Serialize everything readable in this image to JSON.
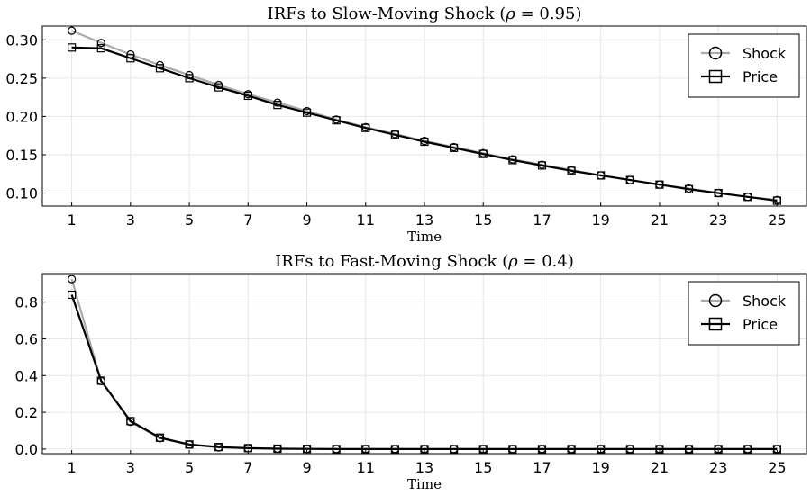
{
  "chart_data": [
    {
      "type": "line",
      "title": "IRFs to Slow-Moving Shock (ρ = 0.95)",
      "title_main": "IRFs to Slow-Moving Shock (",
      "title_sym": "ρ",
      "title_rest": " = 0.95)",
      "xlabel": "Time",
      "ylabel": "",
      "xlim": [
        0,
        26
      ],
      "ylim": [
        0.083,
        0.318
      ],
      "xticks": [
        1,
        3,
        5,
        7,
        9,
        11,
        13,
        15,
        17,
        19,
        21,
        23,
        25
      ],
      "yticks": [
        0.1,
        0.15,
        0.2,
        0.25,
        0.3
      ],
      "ytick_labels": [
        "0.10",
        "0.15",
        "0.20",
        "0.25",
        "0.30"
      ],
      "grid": true,
      "legend": "top-right",
      "x": [
        1,
        2,
        3,
        4,
        5,
        6,
        7,
        8,
        9,
        10,
        11,
        12,
        13,
        14,
        15,
        16,
        17,
        18,
        19,
        20,
        21,
        22,
        23,
        24,
        25
      ],
      "series": [
        {
          "name": "Shock",
          "color": "#aaaaaa",
          "marker": "circle",
          "values": [
            0.312,
            0.296,
            0.281,
            0.267,
            0.254,
            0.241,
            0.229,
            0.218,
            0.207,
            0.196,
            0.186,
            0.177,
            0.168,
            0.16,
            0.152,
            0.144,
            0.137,
            0.13,
            0.123,
            0.117,
            0.111,
            0.106,
            0.1,
            0.095,
            0.091
          ]
        },
        {
          "name": "Price",
          "color": "#000000",
          "marker": "square",
          "values": [
            0.29,
            0.289,
            0.276,
            0.263,
            0.25,
            0.238,
            0.227,
            0.215,
            0.205,
            0.195,
            0.185,
            0.176,
            0.167,
            0.159,
            0.151,
            0.143,
            0.136,
            0.129,
            0.123,
            0.117,
            0.111,
            0.105,
            0.1,
            0.095,
            0.09
          ]
        }
      ]
    },
    {
      "type": "line",
      "title": "IRFs to Fast-Moving Shock (ρ = 0.4)",
      "title_main": "IRFs to Fast-Moving Shock (",
      "title_sym": "ρ",
      "title_rest": " = 0.4)",
      "xlabel": "Time",
      "ylabel": "",
      "xlim": [
        0,
        26
      ],
      "ylim": [
        -0.025,
        0.955
      ],
      "xticks": [
        1,
        3,
        5,
        7,
        9,
        11,
        13,
        15,
        17,
        19,
        21,
        23,
        25
      ],
      "yticks": [
        0.0,
        0.2,
        0.4,
        0.6,
        0.8
      ],
      "ytick_labels": [
        "0.0",
        "0.2",
        "0.4",
        "0.6",
        "0.8"
      ],
      "grid": true,
      "legend": "top-right",
      "x": [
        1,
        2,
        3,
        4,
        5,
        6,
        7,
        8,
        9,
        10,
        11,
        12,
        13,
        14,
        15,
        16,
        17,
        18,
        19,
        20,
        21,
        22,
        23,
        24,
        25
      ],
      "series": [
        {
          "name": "Shock",
          "color": "#aaaaaa",
          "marker": "circle",
          "values": [
            0.925,
            0.37,
            0.148,
            0.059,
            0.024,
            0.009,
            0.004,
            0.002,
            0.001,
            0.0,
            0.0,
            0.0,
            0.0,
            0.0,
            0.0,
            0.0,
            0.0,
            0.0,
            0.0,
            0.0,
            0.0,
            0.0,
            0.0,
            0.0,
            0.0
          ]
        },
        {
          "name": "Price",
          "color": "#000000",
          "marker": "square",
          "values": [
            0.84,
            0.372,
            0.152,
            0.062,
            0.025,
            0.011,
            0.005,
            0.002,
            0.001,
            0.0,
            0.0,
            0.0,
            0.0,
            0.0,
            0.0,
            0.0,
            0.0,
            0.0,
            0.0,
            0.0,
            0.0,
            0.0,
            0.0,
            0.0,
            0.0
          ]
        }
      ]
    }
  ]
}
